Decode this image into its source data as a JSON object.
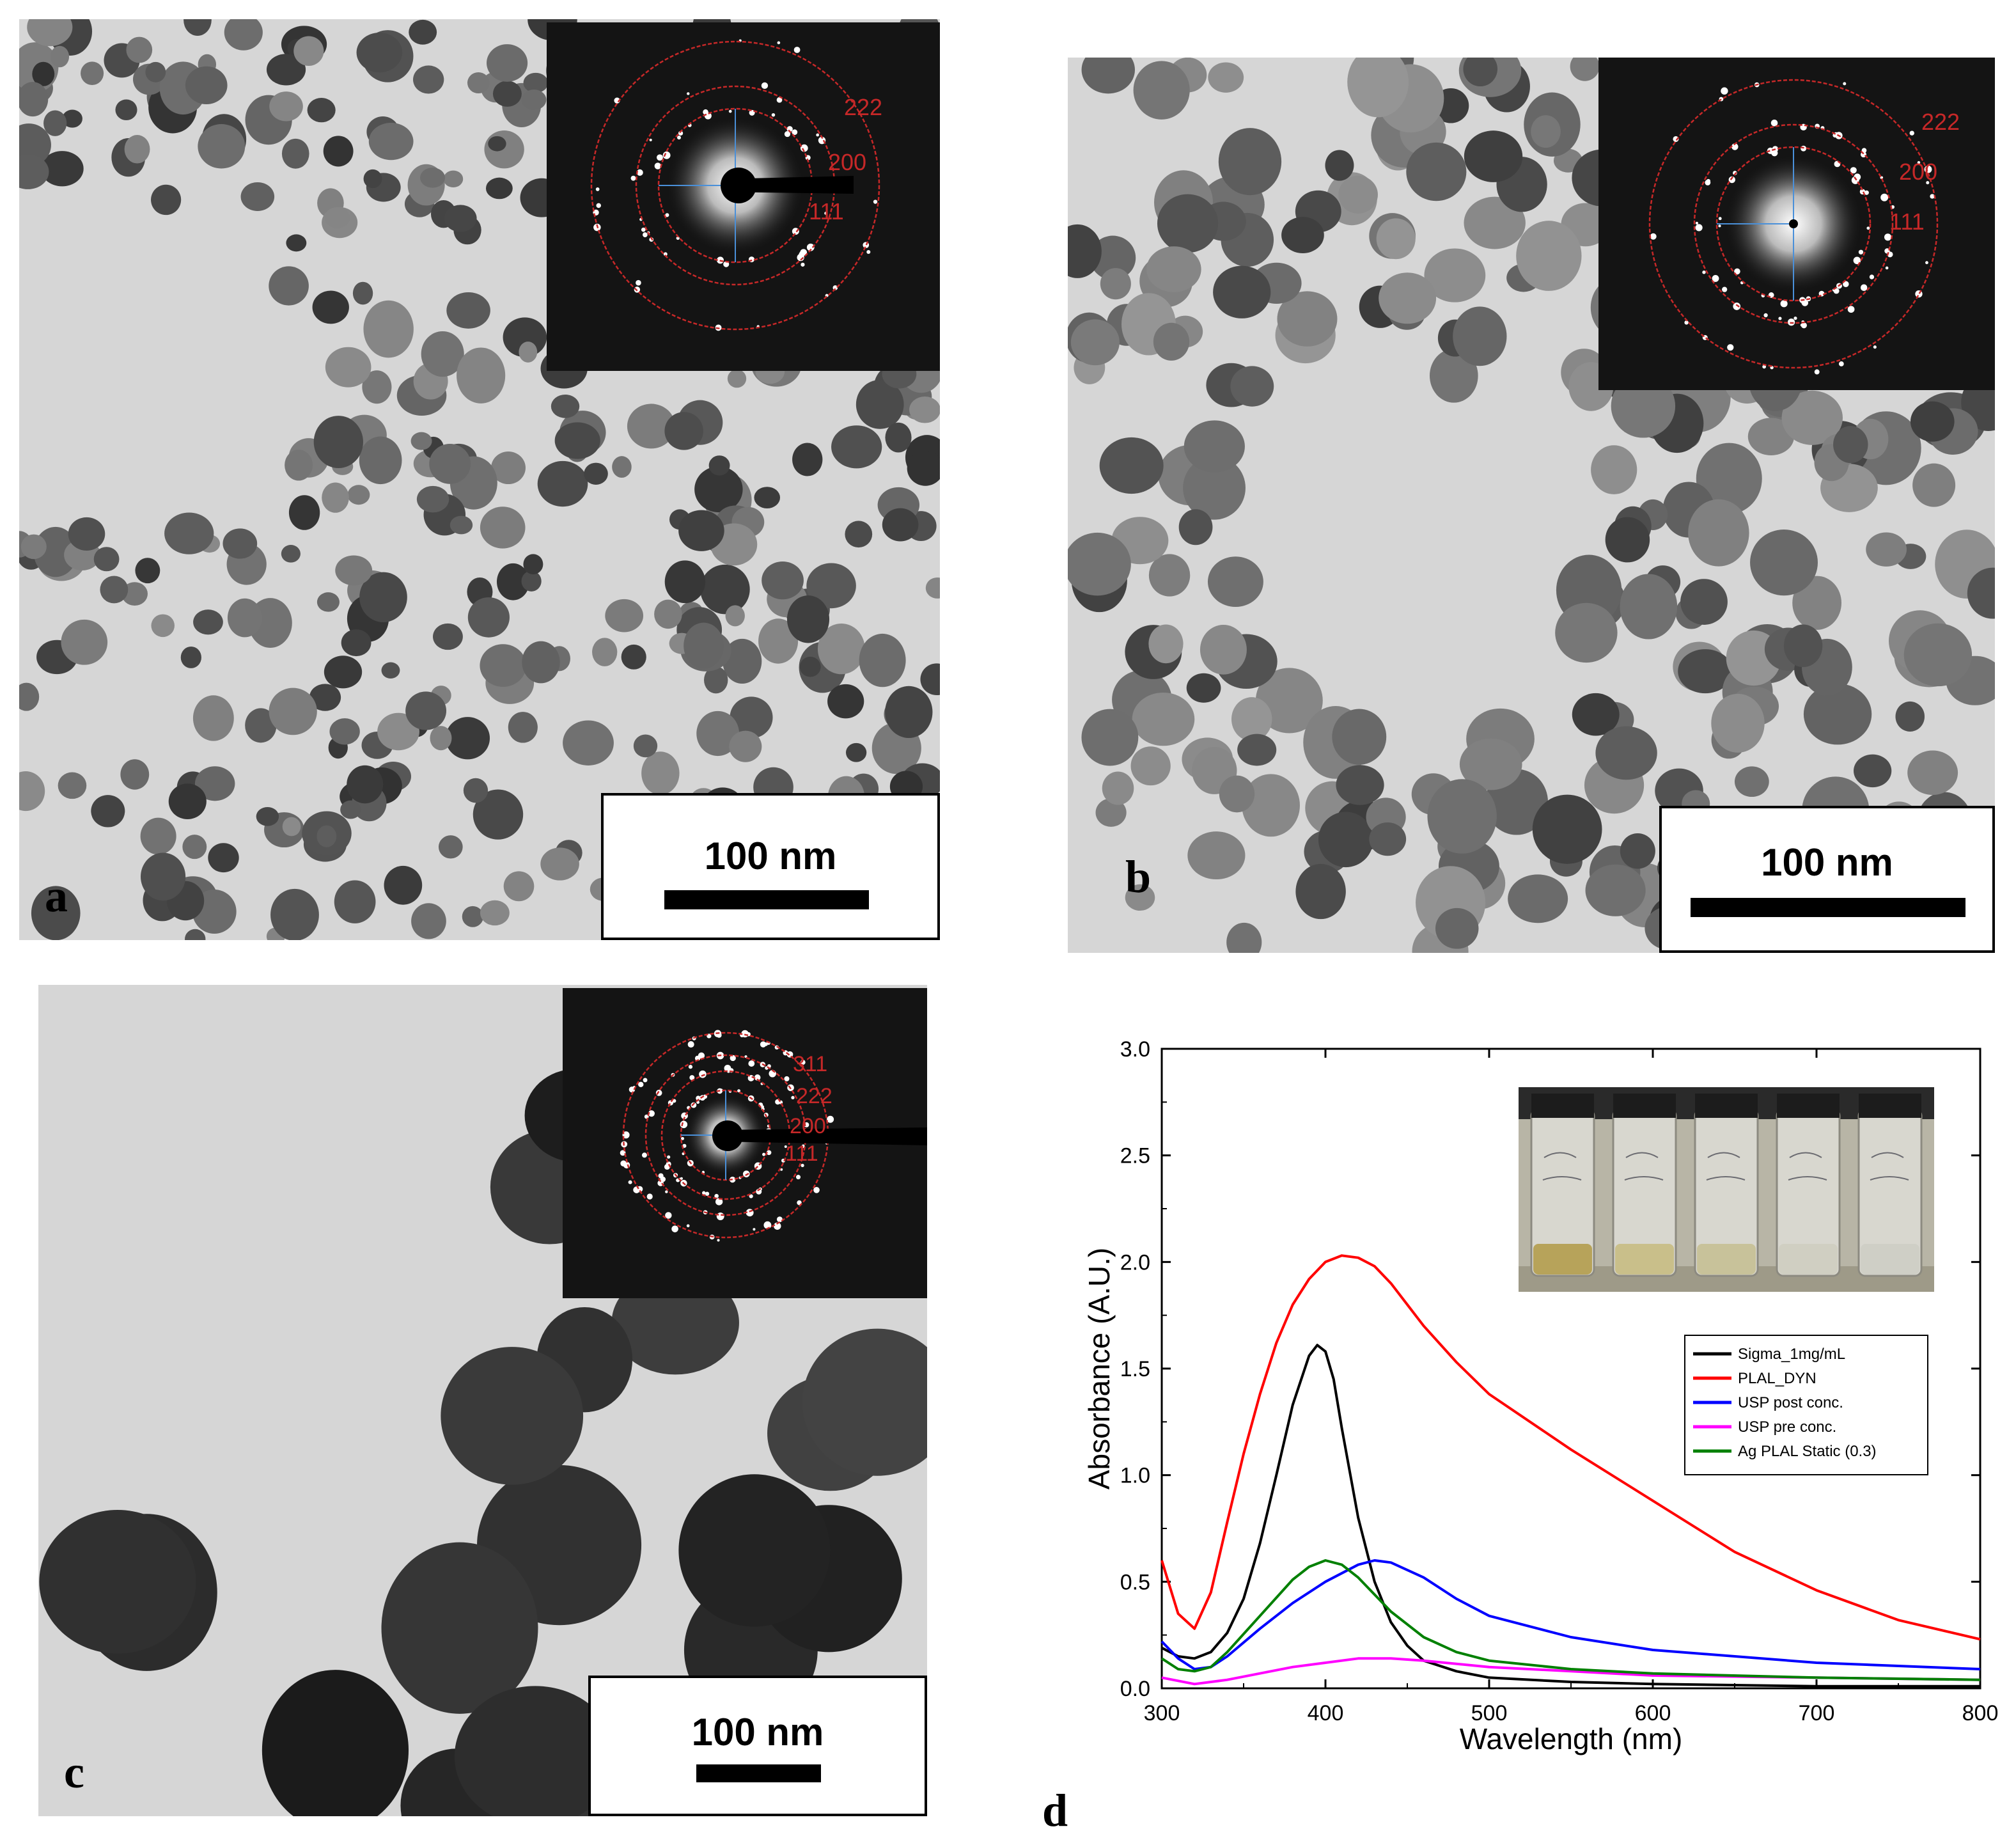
{
  "panels": {
    "a": {
      "label": "a",
      "scale": "100 nm",
      "rings": [
        "222",
        "200",
        "111"
      ]
    },
    "b": {
      "label": "b",
      "scale": "100 nm",
      "rings": [
        "222",
        "200",
        "111"
      ]
    },
    "c": {
      "label": "c",
      "scale": "100 nm",
      "rings": [
        "311",
        "222",
        "200",
        "111"
      ]
    },
    "d": {
      "label": "d"
    }
  },
  "colors": {
    "ring": "#c62828",
    "sigma": "#000000",
    "plal_dyn": "#ff0000",
    "usp_post": "#0000ff",
    "usp_pre": "#ff00ff",
    "ag_static": "#008000"
  },
  "chart_data": {
    "type": "line",
    "xlabel": "Wavelength (nm)",
    "ylabel": "Absorbance (A.U.)",
    "xlim": [
      300,
      800
    ],
    "ylim": [
      0,
      3.0
    ],
    "xticks": [
      "300",
      "400",
      "500",
      "600",
      "700",
      "800"
    ],
    "yticks": [
      "0.0",
      "0.5",
      "1.0",
      "1.5",
      "2.0",
      "2.5",
      "3.0"
    ],
    "legend_position": "right-middle",
    "inset": "photo of five vials",
    "series": [
      {
        "name": "Sigma_1mg/mL",
        "color": "#000000",
        "x": [
          300,
          310,
          320,
          330,
          340,
          350,
          360,
          370,
          380,
          390,
          395,
          400,
          405,
          410,
          420,
          430,
          440,
          450,
          460,
          480,
          500,
          550,
          600,
          700,
          800
        ],
        "y": [
          0.19,
          0.15,
          0.14,
          0.17,
          0.26,
          0.42,
          0.68,
          1.0,
          1.33,
          1.56,
          1.61,
          1.58,
          1.45,
          1.22,
          0.8,
          0.5,
          0.31,
          0.2,
          0.13,
          0.08,
          0.05,
          0.03,
          0.02,
          0.01,
          0.01
        ]
      },
      {
        "name": "PLAL_DYN",
        "color": "#ff0000",
        "x": [
          300,
          310,
          320,
          330,
          340,
          350,
          360,
          370,
          380,
          390,
          400,
          410,
          420,
          430,
          440,
          450,
          460,
          480,
          500,
          550,
          600,
          650,
          700,
          750,
          800
        ],
        "y": [
          0.6,
          0.35,
          0.28,
          0.45,
          0.78,
          1.1,
          1.38,
          1.62,
          1.8,
          1.92,
          2.0,
          2.03,
          2.02,
          1.98,
          1.9,
          1.8,
          1.7,
          1.53,
          1.38,
          1.12,
          0.88,
          0.64,
          0.46,
          0.32,
          0.23
        ]
      },
      {
        "name": "USP post conc.",
        "color": "#0000ff",
        "x": [
          300,
          310,
          320,
          330,
          340,
          360,
          380,
          400,
          420,
          430,
          440,
          460,
          480,
          500,
          550,
          600,
          700,
          800
        ],
        "y": [
          0.22,
          0.14,
          0.09,
          0.1,
          0.15,
          0.28,
          0.4,
          0.5,
          0.58,
          0.6,
          0.59,
          0.52,
          0.42,
          0.34,
          0.24,
          0.18,
          0.12,
          0.09
        ]
      },
      {
        "name": "USP pre conc.",
        "color": "#ff00ff",
        "x": [
          300,
          320,
          340,
          360,
          380,
          400,
          420,
          430,
          440,
          460,
          500,
          550,
          600,
          700,
          800
        ],
        "y": [
          0.05,
          0.02,
          0.04,
          0.07,
          0.1,
          0.12,
          0.14,
          0.14,
          0.14,
          0.13,
          0.1,
          0.08,
          0.06,
          0.05,
          0.04
        ]
      },
      {
        "name": "Ag PLAL Static (0.3)",
        "color": "#008000",
        "x": [
          300,
          310,
          320,
          330,
          340,
          360,
          380,
          390,
          400,
          410,
          420,
          440,
          460,
          480,
          500,
          550,
          600,
          700,
          800
        ],
        "y": [
          0.14,
          0.09,
          0.08,
          0.1,
          0.17,
          0.34,
          0.51,
          0.57,
          0.6,
          0.58,
          0.52,
          0.36,
          0.24,
          0.17,
          0.13,
          0.09,
          0.07,
          0.05,
          0.04
        ]
      }
    ]
  }
}
